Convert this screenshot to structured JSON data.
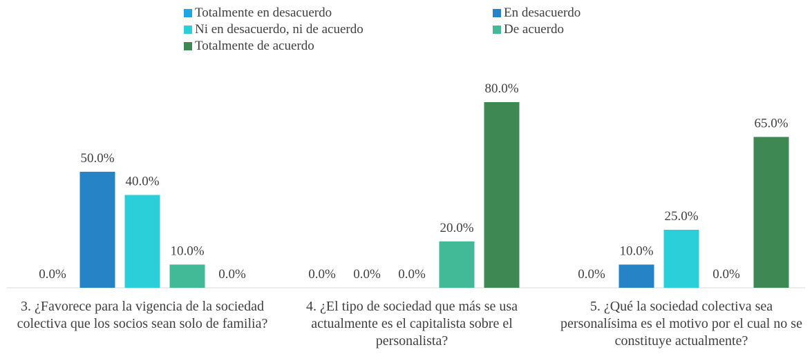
{
  "chart_data": {
    "type": "bar",
    "categories": [
      "3. ¿Favorece para la vigencia de la sociedad colectiva que los socios sean solo de familia?",
      "4. ¿El tipo de sociedad que más se usa actualmente es el capitalista sobre el personalista?",
      "5. ¿Qué la sociedad colectiva sea personalísima es el motivo por el cual no se constituye  actualmente?"
    ],
    "series": [
      {
        "name": "Totalmente en desacuerdo",
        "color": "#1ea7e6",
        "values": [
          0,
          0,
          0
        ],
        "value_labels": [
          "0.0%",
          "0.0%",
          "0.0%"
        ]
      },
      {
        "name": "En desacuerdo",
        "color": "#2683c6",
        "values": [
          50,
          0,
          10
        ],
        "value_labels": [
          "50.0%",
          "0.0%",
          "10.0%"
        ]
      },
      {
        "name": "Ni en desacuerdo, ni de acuerdo",
        "color": "#2bcfd9",
        "values": [
          40,
          0,
          25
        ],
        "value_labels": [
          "40.0%",
          "0.0%",
          "25.0%"
        ]
      },
      {
        "name": "De acuerdo",
        "color": "#42ba97",
        "values": [
          10,
          20,
          0
        ],
        "value_labels": [
          "10.0%",
          "20.0%",
          "0.0%"
        ]
      },
      {
        "name": "Totalmente de acuerdo",
        "color": "#3e8853",
        "values": [
          0,
          80,
          65
        ],
        "value_labels": [
          "0.0%",
          "80.0%",
          "65.0%"
        ]
      }
    ],
    "legend": "top"
  }
}
